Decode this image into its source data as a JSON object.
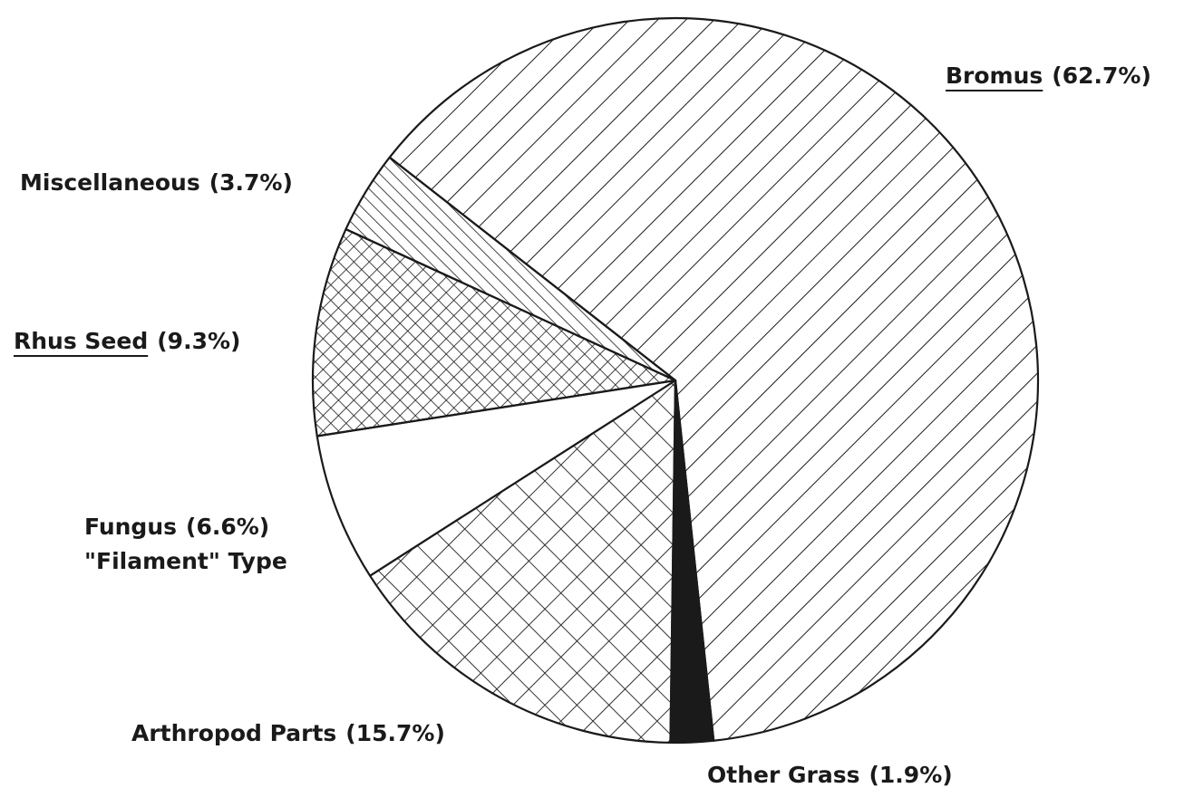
{
  "chart_data": {
    "type": "pie",
    "categories": [
      "Bromus",
      "Other Grass",
      "Arthropod Parts",
      "Fungus",
      "Rhus Seed",
      "Miscellaneous"
    ],
    "values": [
      62.7,
      1.9,
      15.7,
      6.6,
      9.3,
      3.7
    ],
    "value_labels": [
      "(62.7%)",
      "(1.9%)",
      "(15.7%)",
      "(6.6%)",
      "(9.3%)",
      "(3.7%)"
    ],
    "annotations": [
      {
        "slice": 3,
        "text": "\"Filament\" Type"
      }
    ],
    "underlined": [
      true,
      false,
      false,
      false,
      true,
      false
    ],
    "patterns": [
      "hatch-back",
      "solid",
      "cross",
      "none",
      "cross-dense",
      "hatch"
    ],
    "color": "#1a1a1a"
  }
}
